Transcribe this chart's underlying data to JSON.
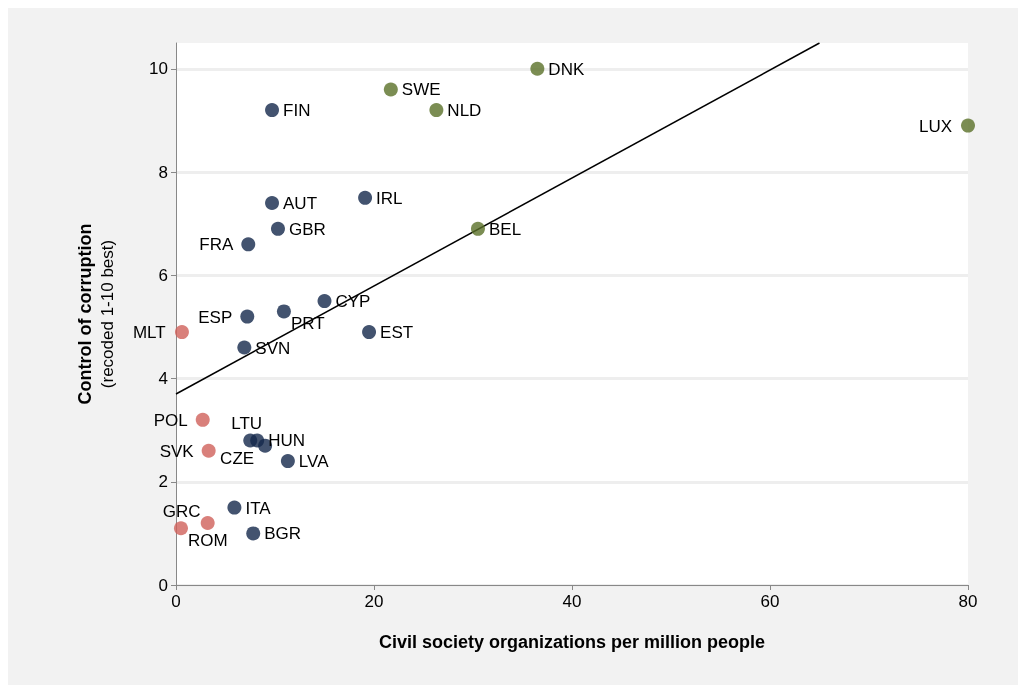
{
  "chart_data": {
    "type": "scatter",
    "xlabel": "Civil society organizations per million people",
    "ylabel": "Control of corruption\n(recoded 1-10 best)",
    "xlim": [
      0,
      80
    ],
    "xticks": [
      0,
      20,
      40,
      60,
      80
    ],
    "ylim": [
      0,
      10.5
    ],
    "yticks": [
      0,
      2,
      4,
      6,
      8,
      10
    ],
    "grid": "y",
    "marker": "circle",
    "series": [
      {
        "color": "#5a7028",
        "x": [
          36.5,
          21.7,
          26.3,
          80,
          30.5
        ],
        "values": [
          10.0,
          9.6,
          9.2,
          8.9,
          6.9
        ]
      },
      {
        "color": "#14284b",
        "x": [
          9.7,
          9.7,
          19.1,
          10.3,
          7.3,
          15.0,
          10.9,
          7.2,
          19.5,
          6.9,
          7.5,
          8.2,
          9.0,
          11.3,
          5.9,
          7.8
        ],
        "values": [
          9.2,
          7.4,
          7.5,
          6.9,
          6.6,
          5.5,
          5.3,
          5.2,
          4.9,
          4.6,
          2.8,
          2.8,
          2.7,
          2.4,
          1.5,
          1.0
        ]
      },
      {
        "color": "#d0605a",
        "x": [
          0.6,
          2.7,
          3.3,
          3.2,
          0.5
        ],
        "values": [
          4.9,
          3.2,
          2.6,
          1.2,
          1.1
        ]
      },
      {
        "type": "line",
        "color": "#000000",
        "marker": "none",
        "x": [
          0,
          65
        ],
        "values": [
          3.7,
          10.5
        ]
      }
    ],
    "annotations": [
      {
        "text": "DNK",
        "x": 36.5,
        "y": 10.0
      },
      {
        "text": "SWE",
        "x": 21.7,
        "y": 9.6
      },
      {
        "text": "NLD",
        "x": 26.3,
        "y": 9.2
      },
      {
        "text": "LUX",
        "x": 80,
        "y": 8.9
      },
      {
        "text": "BEL",
        "x": 30.5,
        "y": 6.9
      },
      {
        "text": "FIN",
        "x": 9.7,
        "y": 9.2
      },
      {
        "text": "AUT",
        "x": 9.7,
        "y": 7.4
      },
      {
        "text": "IRL",
        "x": 19.1,
        "y": 7.5
      },
      {
        "text": "GBR",
        "x": 10.3,
        "y": 6.9
      },
      {
        "text": "FRA",
        "x": 7.3,
        "y": 6.6
      },
      {
        "text": "CYP",
        "x": 15.0,
        "y": 5.5
      },
      {
        "text": "PRT",
        "x": 10.9,
        "y": 5.3
      },
      {
        "text": "ESP",
        "x": 7.2,
        "y": 5.2
      },
      {
        "text": "EST",
        "x": 19.5,
        "y": 4.9
      },
      {
        "text": "SVN",
        "x": 6.9,
        "y": 4.6
      },
      {
        "text": "LTU",
        "x": 7.5,
        "y": 2.8
      },
      {
        "text": "HUN",
        "x": 8.2,
        "y": 2.8
      },
      {
        "text": "CZE",
        "x": 9.0,
        "y": 2.7
      },
      {
        "text": "LVA",
        "x": 11.3,
        "y": 2.4
      },
      {
        "text": "ITA",
        "x": 5.9,
        "y": 1.5
      },
      {
        "text": "BGR",
        "x": 7.8,
        "y": 1.0
      },
      {
        "text": "MLT",
        "x": 0.6,
        "y": 4.9
      },
      {
        "text": "POL",
        "x": 2.7,
        "y": 3.2
      },
      {
        "text": "SVK",
        "x": 3.3,
        "y": 2.6
      },
      {
        "text": "GRC",
        "x": 3.2,
        "y": 1.2
      },
      {
        "text": "ROM",
        "x": 0.5,
        "y": 1.1
      }
    ]
  }
}
